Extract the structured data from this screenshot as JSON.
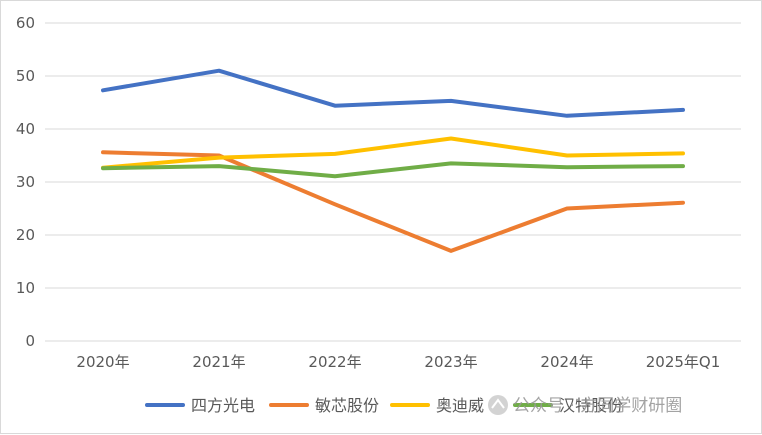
{
  "chart_data": {
    "type": "line",
    "categories": [
      "2020年",
      "2021年",
      "2022年",
      "2023年",
      "2024年",
      "2025年Q1"
    ],
    "ylim": [
      0,
      60
    ],
    "yticks": [
      0,
      10,
      20,
      30,
      40,
      50,
      60
    ],
    "grid": true,
    "legend_position": "bottom",
    "series": [
      {
        "name": "四方光电",
        "color": "#4472C4",
        "values": [
          47.3,
          51.0,
          44.4,
          45.3,
          42.5,
          43.6
        ]
      },
      {
        "name": "敏芯股份",
        "color": "#ED7D31",
        "values": [
          35.6,
          35.0,
          25.8,
          17.0,
          25.0,
          26.1
        ]
      },
      {
        "name": "奥迪威",
        "color": "#FFC000",
        "values": [
          32.7,
          34.6,
          35.3,
          38.2,
          35.0,
          35.4
        ]
      },
      {
        "name": "汉特股份",
        "color": "#70AD47",
        "values": [
          32.6,
          33.0,
          31.1,
          33.5,
          32.8,
          33.0
        ]
      }
    ]
  },
  "watermark": {
    "text": "公众号 · 方同学财研圈"
  }
}
